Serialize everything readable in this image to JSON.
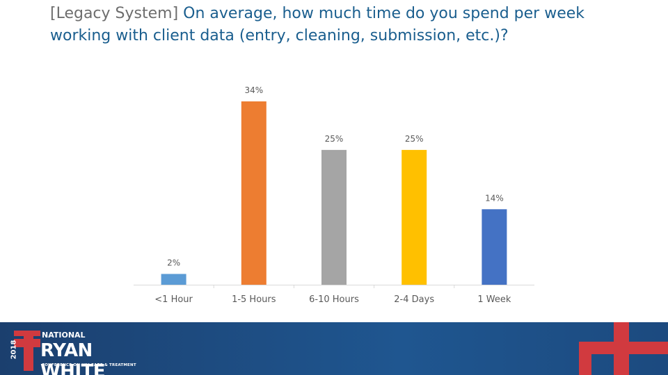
{
  "title": {
    "prefix": "[Legacy System]",
    "text": "On average, how much time do you spend per week working with client data (entry, cleaning, submission, etc.)?"
  },
  "chart_data": {
    "type": "bar",
    "categories": [
      "<1 Hour",
      "1-5 Hours",
      "6-10 Hours",
      "2-4 Days",
      "1 Week"
    ],
    "values": [
      2,
      34,
      25,
      25,
      14
    ],
    "labels": [
      "2%",
      "34%",
      "25%",
      "25%",
      "14%"
    ],
    "colors": [
      "#5b9bd5",
      "#ed7d31",
      "#a5a5a5",
      "#ffc000",
      "#4472c4"
    ],
    "ylim": [
      0,
      34
    ],
    "grid": false,
    "legend": "none"
  },
  "footer": {
    "year": "2018",
    "national": "NATIONAL",
    "name": "RYAN WHITE",
    "conference": "CONFERENCE ON HIV CARE & TREATMENT",
    "accent_color": "#d13a3f",
    "band_color": "#1f5690"
  }
}
